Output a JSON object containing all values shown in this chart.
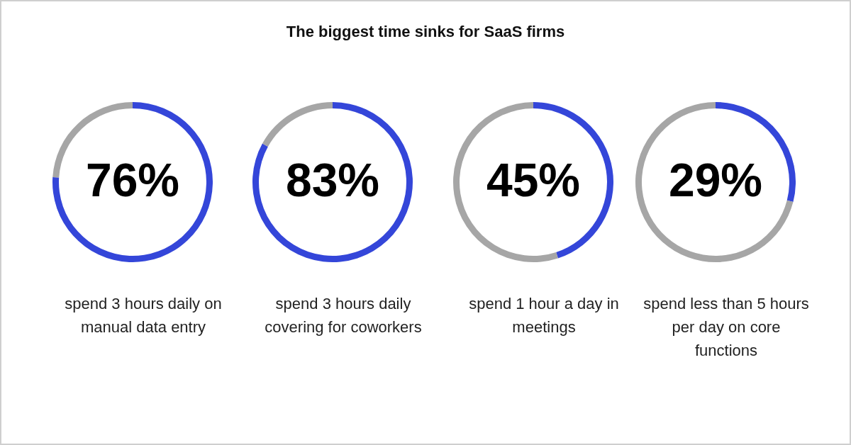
{
  "chart_data": [
    {
      "type": "donut",
      "title": "The biggest time sinks for SaaS firms",
      "categories": [
        null,
        null
      ],
      "values": [
        76,
        24
      ],
      "colors": [
        "#3446d9",
        "#a6a6a6"
      ],
      "value_labels": [
        "76%",
        null
      ],
      "xlabel": "spend 3 hours daily on manual data entry"
    },
    {
      "type": "donut",
      "categories": [
        null,
        null
      ],
      "values": [
        83,
        17
      ],
      "colors": [
        "#3446d9",
        "#a6a6a6"
      ],
      "value_labels": [
        "83%",
        null
      ],
      "xlabel": "spend 3 hours daily covering for coworkers"
    },
    {
      "type": "donut",
      "categories": [
        null,
        null
      ],
      "values": [
        45,
        55
      ],
      "colors": [
        "#3446d9",
        "#a6a6a6"
      ],
      "value_labels": [
        "45%",
        null
      ],
      "xlabel": "spend 1 hour a day in meetings"
    },
    {
      "type": "donut",
      "categories": [
        null,
        null
      ],
      "values": [
        29,
        71
      ],
      "colors": [
        "#3446d9",
        "#a6a6a6"
      ],
      "value_labels": [
        "29%",
        null
      ],
      "xlabel": "spend less than 5 hours per day on core functions"
    }
  ]
}
